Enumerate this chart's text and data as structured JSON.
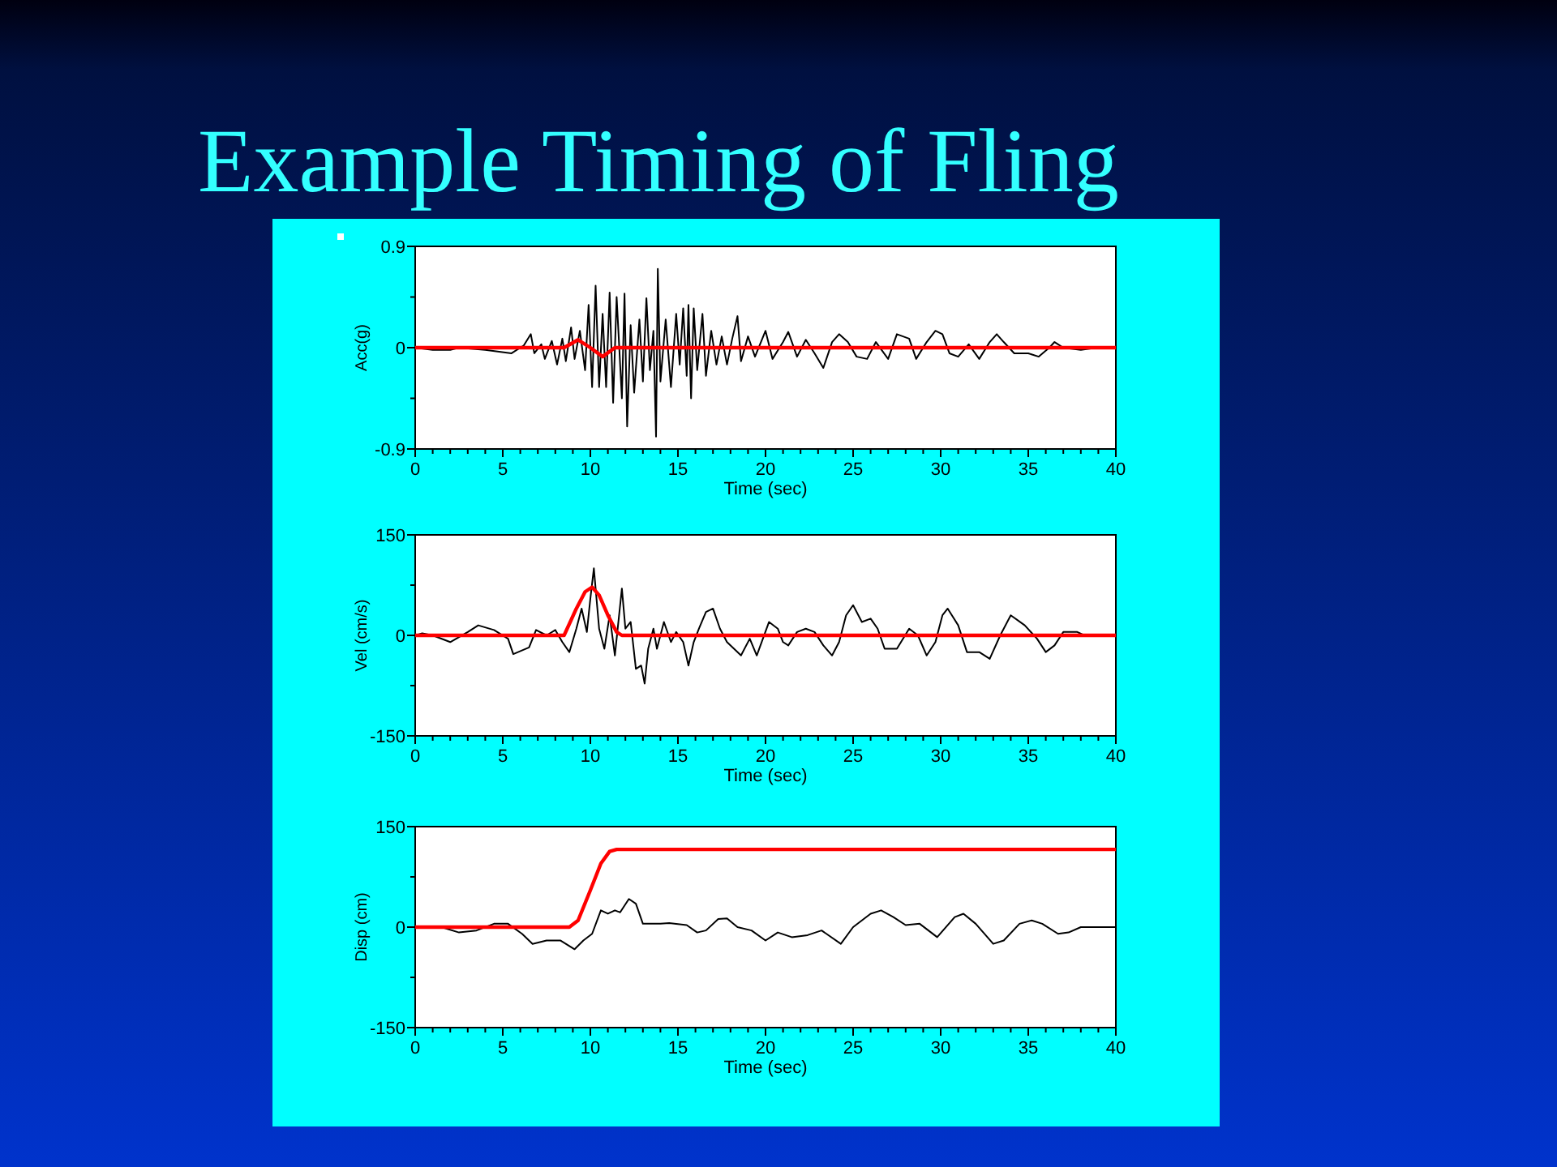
{
  "chart_data": [
    {
      "type": "line",
      "title": "Example Timing of Fling",
      "xlabel": "Time (sec)",
      "ylabel": "Acc(g)",
      "xlim": [
        0,
        40
      ],
      "ylim": [
        -0.9,
        0.9
      ],
      "xticks": [
        0,
        {
          "value": 1,
          "label": null
        },
        {
          "value": 2,
          "label": null
        },
        {
          "value": 3,
          "label": null
        },
        {
          "value": 4,
          "label": null
        },
        5,
        {
          "value": 6,
          "label": null
        },
        {
          "value": 7,
          "label": null
        },
        {
          "value": 8,
          "label": null
        },
        {
          "value": 9,
          "label": null
        },
        10,
        {
          "value": 11,
          "label": null
        },
        {
          "value": 12,
          "label": null
        },
        {
          "value": 13,
          "label": null
        },
        {
          "value": 14,
          "label": null
        },
        15,
        {
          "value": 16,
          "label": null
        },
        {
          "value": 17,
          "label": null
        },
        {
          "value": 18,
          "label": null
        },
        {
          "value": 19,
          "label": null
        },
        20,
        {
          "value": 21,
          "label": null
        },
        {
          "value": 22,
          "label": null
        },
        {
          "value": 23,
          "label": null
        },
        {
          "value": 24,
          "label": null
        },
        25,
        {
          "value": 26,
          "label": null
        },
        {
          "value": 27,
          "label": null
        },
        {
          "value": 28,
          "label": null
        },
        {
          "value": 29,
          "label": null
        },
        30,
        {
          "value": 31,
          "label": null
        },
        {
          "value": 32,
          "label": null
        },
        {
          "value": 33,
          "label": null
        },
        {
          "value": 34,
          "label": null
        },
        35,
        {
          "value": 36,
          "label": null
        },
        {
          "value": 37,
          "label": null
        },
        {
          "value": 38,
          "label": null
        },
        {
          "value": 39,
          "label": null
        },
        40
      ],
      "yticks": [
        -0.9,
        {
          "value": -0.45,
          "label": null
        },
        0,
        {
          "value": 0.45,
          "label": null
        },
        0.9
      ],
      "series": [
        {
          "color": "#000000",
          "x": [
            0,
            1,
            2,
            2.5,
            4,
            5.5,
            6.2,
            6.6,
            6.8,
            7.2,
            7.4,
            7.8,
            8.1,
            8.4,
            8.6,
            8.9,
            9.1,
            9.4,
            9.7,
            9.9,
            10.1,
            10.3,
            10.5,
            10.7,
            10.9,
            11.1,
            11.3,
            11.5,
            11.8,
            11.95,
            12.1,
            12.3,
            12.5,
            12.8,
            13,
            13.2,
            13.4,
            13.6,
            13.75,
            13.85,
            14,
            14.3,
            14.6,
            14.9,
            15.1,
            15.3,
            15.5,
            15.6,
            15.75,
            15.9,
            16.1,
            16.4,
            16.6,
            16.9,
            17.2,
            17.5,
            17.8,
            18.1,
            18.4,
            18.6,
            19,
            19.4,
            20,
            20.4,
            21,
            21.3,
            21.8,
            22.3,
            22.8,
            23.3,
            23.8,
            24.2,
            24.7,
            25.2,
            25.8,
            26.3,
            27,
            27.5,
            28.2,
            28.6,
            29.2,
            29.7,
            30.1,
            30.5,
            31,
            31.6,
            32.2,
            32.8,
            33.2,
            33.6,
            34.2,
            35,
            35.6,
            36.2,
            36.5,
            37,
            38,
            38.9
          ],
          "values": [
            0,
            -0.02,
            -0.02,
            0,
            -0.02,
            -0.05,
            0.02,
            0.12,
            -0.05,
            0.03,
            -0.1,
            0.06,
            -0.15,
            0.08,
            -0.12,
            0.18,
            -0.1,
            0.15,
            -0.2,
            0.38,
            -0.35,
            0.55,
            -0.35,
            0.3,
            -0.35,
            0.49,
            -0.49,
            0.45,
            -0.45,
            0.48,
            -0.7,
            0.2,
            -0.4,
            0.25,
            -0.3,
            0.44,
            -0.2,
            0.15,
            -0.79,
            0.7,
            -0.3,
            0.25,
            -0.35,
            0.3,
            -0.15,
            0.35,
            -0.25,
            0.38,
            -0.45,
            0.35,
            -0.2,
            0.3,
            -0.25,
            0.15,
            -0.15,
            0.1,
            -0.15,
            0.08,
            0.28,
            -0.12,
            0.1,
            -0.08,
            0.15,
            -0.1,
            0.05,
            0.14,
            -0.08,
            0.07,
            -0.05,
            -0.18,
            0.05,
            0.12,
            0.05,
            -0.08,
            -0.1,
            0.05,
            -0.1,
            0.12,
            0.08,
            -0.1,
            0.05,
            0.15,
            0.12,
            -0.05,
            -0.08,
            0.03,
            -0.1,
            0.05,
            0.12,
            0.05,
            -0.05,
            -0.05,
            -0.08,
            0,
            0.05,
            0,
            -0.02,
            0
          ]
        },
        {
          "color": "#ff0000",
          "x": [
            0,
            8.5,
            9.3,
            10,
            10.7,
            11.4,
            40
          ],
          "values": [
            0,
            0,
            0.07,
            0,
            -0.08,
            0,
            0
          ]
        }
      ]
    },
    {
      "type": "line",
      "xlabel": "Time (sec)",
      "ylabel": "Vel (cm/s)",
      "xlim": [
        0,
        40
      ],
      "ylim": [
        -150,
        150
      ],
      "xticks": [
        0,
        {
          "value": 1,
          "label": null
        },
        {
          "value": 2,
          "label": null
        },
        {
          "value": 3,
          "label": null
        },
        {
          "value": 4,
          "label": null
        },
        5,
        {
          "value": 6,
          "label": null
        },
        {
          "value": 7,
          "label": null
        },
        {
          "value": 8,
          "label": null
        },
        {
          "value": 9,
          "label": null
        },
        10,
        {
          "value": 11,
          "label": null
        },
        {
          "value": 12,
          "label": null
        },
        {
          "value": 13,
          "label": null
        },
        {
          "value": 14,
          "label": null
        },
        15,
        {
          "value": 16,
          "label": null
        },
        {
          "value": 17,
          "label": null
        },
        {
          "value": 18,
          "label": null
        },
        {
          "value": 19,
          "label": null
        },
        20,
        {
          "value": 21,
          "label": null
        },
        {
          "value": 22,
          "label": null
        },
        {
          "value": 23,
          "label": null
        },
        {
          "value": 24,
          "label": null
        },
        25,
        {
          "value": 26,
          "label": null
        },
        {
          "value": 27,
          "label": null
        },
        {
          "value": 28,
          "label": null
        },
        {
          "value": 29,
          "label": null
        },
        30,
        {
          "value": 31,
          "label": null
        },
        {
          "value": 32,
          "label": null
        },
        {
          "value": 33,
          "label": null
        },
        {
          "value": 34,
          "label": null
        },
        35,
        {
          "value": 36,
          "label": null
        },
        {
          "value": 37,
          "label": null
        },
        {
          "value": 38,
          "label": null
        },
        {
          "value": 39,
          "label": null
        },
        40
      ],
      "yticks": [
        -150,
        {
          "value": -75,
          "label": null
        },
        0,
        {
          "value": 75,
          "label": null
        },
        150
      ],
      "series": [
        {
          "color": "#000000",
          "x": [
            0,
            0.4,
            1,
            2,
            3,
            3.6,
            4.5,
            5.3,
            5.6,
            6.5,
            6.9,
            7.5,
            8,
            8.4,
            8.8,
            9.2,
            9.5,
            9.8,
            10,
            10.2,
            10.5,
            10.8,
            11.1,
            11.4,
            11.6,
            11.8,
            12,
            12.3,
            12.6,
            12.9,
            13.1,
            13.3,
            13.6,
            13.8,
            14.2,
            14.6,
            14.9,
            15.3,
            15.6,
            15.9,
            16.2,
            16.6,
            17,
            17.4,
            17.8,
            18.2,
            18.6,
            19.1,
            19.5,
            20.2,
            20.7,
            21,
            21.3,
            21.8,
            22.3,
            22.8,
            23.3,
            23.8,
            24.2,
            24.6,
            25,
            25.5,
            26,
            26.4,
            26.8,
            27.5,
            28.2,
            28.7,
            29.2,
            29.7,
            30.1,
            30.4,
            31,
            31.5,
            32.2,
            32.8,
            33.4,
            34,
            34.8,
            35.5,
            36,
            36.5,
            37,
            37.8,
            38.2
          ],
          "values": [
            0,
            3,
            0,
            -10,
            5,
            15,
            8,
            -5,
            -28,
            -18,
            8,
            0,
            8,
            -10,
            -25,
            10,
            40,
            5,
            55,
            100,
            10,
            -20,
            30,
            -30,
            20,
            70,
            10,
            20,
            -50,
            -45,
            -72,
            -20,
            10,
            -20,
            20,
            -10,
            5,
            -10,
            -45,
            -10,
            10,
            35,
            40,
            10,
            -10,
            -20,
            -30,
            -5,
            -30,
            20,
            10,
            -10,
            -15,
            5,
            10,
            5,
            -15,
            -30,
            -10,
            30,
            45,
            20,
            25,
            10,
            -20,
            -20,
            10,
            0,
            -30,
            -10,
            30,
            40,
            15,
            -25,
            -25,
            -35,
            0,
            30,
            15,
            -5,
            -25,
            -15,
            5,
            5,
            0
          ]
        },
        {
          "color": "#ff0000",
          "x": [
            0,
            8.5,
            9.2,
            9.7,
            10.1,
            10.5,
            11,
            11.5,
            11.8,
            40
          ],
          "values": [
            0,
            0,
            40,
            65,
            72,
            60,
            30,
            5,
            0,
            0
          ]
        }
      ]
    },
    {
      "type": "line",
      "xlabel": "Time (sec)",
      "ylabel": "Disp (cm)",
      "xlim": [
        0,
        40
      ],
      "ylim": [
        -150,
        150
      ],
      "xticks": [
        0,
        {
          "value": 1,
          "label": null
        },
        {
          "value": 2,
          "label": null
        },
        {
          "value": 3,
          "label": null
        },
        {
          "value": 4,
          "label": null
        },
        5,
        {
          "value": 6,
          "label": null
        },
        {
          "value": 7,
          "label": null
        },
        {
          "value": 8,
          "label": null
        },
        {
          "value": 9,
          "label": null
        },
        10,
        {
          "value": 11,
          "label": null
        },
        {
          "value": 12,
          "label": null
        },
        {
          "value": 13,
          "label": null
        },
        {
          "value": 14,
          "label": null
        },
        15,
        {
          "value": 16,
          "label": null
        },
        {
          "value": 17,
          "label": null
        },
        {
          "value": 18,
          "label": null
        },
        {
          "value": 19,
          "label": null
        },
        20,
        {
          "value": 21,
          "label": null
        },
        {
          "value": 22,
          "label": null
        },
        {
          "value": 23,
          "label": null
        },
        {
          "value": 24,
          "label": null
        },
        25,
        {
          "value": 26,
          "label": null
        },
        {
          "value": 27,
          "label": null
        },
        {
          "value": 28,
          "label": null
        },
        {
          "value": 29,
          "label": null
        },
        30,
        {
          "value": 31,
          "label": null
        },
        {
          "value": 32,
          "label": null
        },
        {
          "value": 33,
          "label": null
        },
        {
          "value": 34,
          "label": null
        },
        35,
        {
          "value": 36,
          "label": null
        },
        {
          "value": 37,
          "label": null
        },
        {
          "value": 38,
          "label": null
        },
        {
          "value": 39,
          "label": null
        },
        40
      ],
      "yticks": [
        -150,
        {
          "value": -75,
          "label": null
        },
        0,
        {
          "value": 75,
          "label": null
        },
        150
      ],
      "series": [
        {
          "color": "#000000",
          "x": [
            0,
            1.5,
            2.5,
            3.5,
            4.5,
            5.3,
            6.1,
            6.7,
            7.5,
            8.3,
            9.1,
            9.6,
            10.1,
            10.6,
            11,
            11.4,
            11.7,
            12.2,
            12.6,
            13,
            14,
            14.5,
            15.5,
            16.1,
            16.6,
            17.3,
            17.8,
            18.4,
            19.2,
            20,
            20.7,
            21.5,
            22.4,
            23.2,
            24.3,
            25,
            26,
            26.6,
            27.3,
            28,
            28.8,
            29.8,
            30.8,
            31.3,
            32,
            33,
            33.6,
            34.5,
            35.2,
            35.8,
            36.7,
            37.3,
            38,
            40
          ],
          "values": [
            0,
            0,
            -8,
            -5,
            5,
            5,
            -10,
            -25,
            -20,
            -20,
            -33,
            -20,
            -10,
            25,
            20,
            25,
            22,
            42,
            35,
            5,
            5,
            6,
            3,
            -8,
            -5,
            12,
            13,
            0,
            -5,
            -20,
            -8,
            -15,
            -12,
            -5,
            -25,
            0,
            20,
            25,
            15,
            3,
            5,
            -15,
            15,
            20,
            5,
            -25,
            -20,
            5,
            10,
            5,
            -10,
            -8,
            0,
            0
          ]
        },
        {
          "color": "#ff0000",
          "x": [
            0,
            8.8,
            9.3,
            10,
            10.6,
            11.1,
            11.5,
            40
          ],
          "values": [
            0,
            0,
            10,
            55,
            95,
            113,
            116,
            116
          ]
        }
      ]
    }
  ]
}
